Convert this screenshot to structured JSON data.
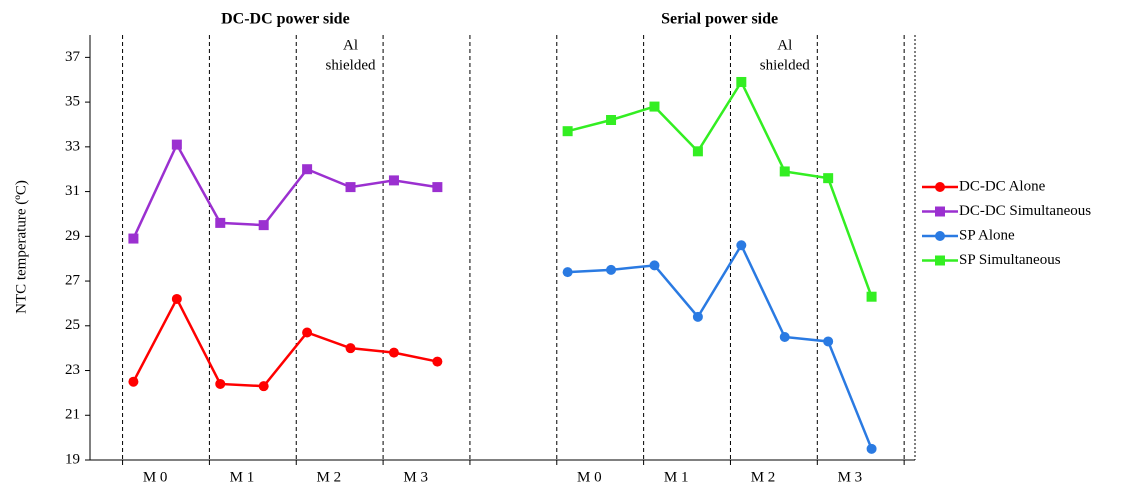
{
  "chart_data": {
    "type": "line",
    "ylabel": "NTC temperature (ºC)",
    "xlim": [
      0,
      19
    ],
    "ylim": [
      19,
      38
    ],
    "yticks": [
      19,
      21,
      23,
      25,
      27,
      29,
      31,
      33,
      35,
      37
    ],
    "panels": [
      {
        "title": "DC-DC power side",
        "categories": [
          "M 0",
          "M 1",
          "M 2",
          "M 3"
        ],
        "annotation": [
          "Al",
          "shielded"
        ]
      },
      {
        "title": "Serial power side",
        "categories": [
          "M 0",
          "M 1",
          "M 2",
          "M 3"
        ],
        "annotation": [
          "Al",
          "shielded"
        ]
      }
    ],
    "series": [
      {
        "name": "DC-DC Alone",
        "color": "#ff0000",
        "marker": "circle",
        "x": [
          1,
          2,
          3,
          4,
          5,
          6,
          7,
          8
        ],
        "values": [
          22.5,
          26.2,
          22.4,
          22.3,
          24.7,
          24.0,
          23.8,
          23.4
        ]
      },
      {
        "name": "DC-DC Simultaneous",
        "color": "#9b30d0",
        "marker": "square",
        "x": [
          1,
          2,
          3,
          4,
          5,
          6,
          7,
          8
        ],
        "values": [
          28.9,
          33.1,
          29.6,
          29.5,
          32.0,
          31.2,
          31.5,
          31.2
        ]
      },
      {
        "name": "SP Alone",
        "color": "#2a7ae2",
        "marker": "circle",
        "x": [
          11,
          12,
          13,
          14,
          15,
          16,
          17,
          18
        ],
        "values": [
          27.4,
          27.5,
          27.7,
          25.4,
          28.6,
          24.5,
          24.3,
          19.5
        ]
      },
      {
        "name": "SP Simultaneous",
        "color": "#33ee22",
        "marker": "square",
        "x": [
          11,
          12,
          13,
          14,
          15,
          16,
          17,
          18
        ],
        "values": [
          33.7,
          34.2,
          34.8,
          32.8,
          35.9,
          31.9,
          31.6,
          26.3
        ]
      }
    ]
  }
}
